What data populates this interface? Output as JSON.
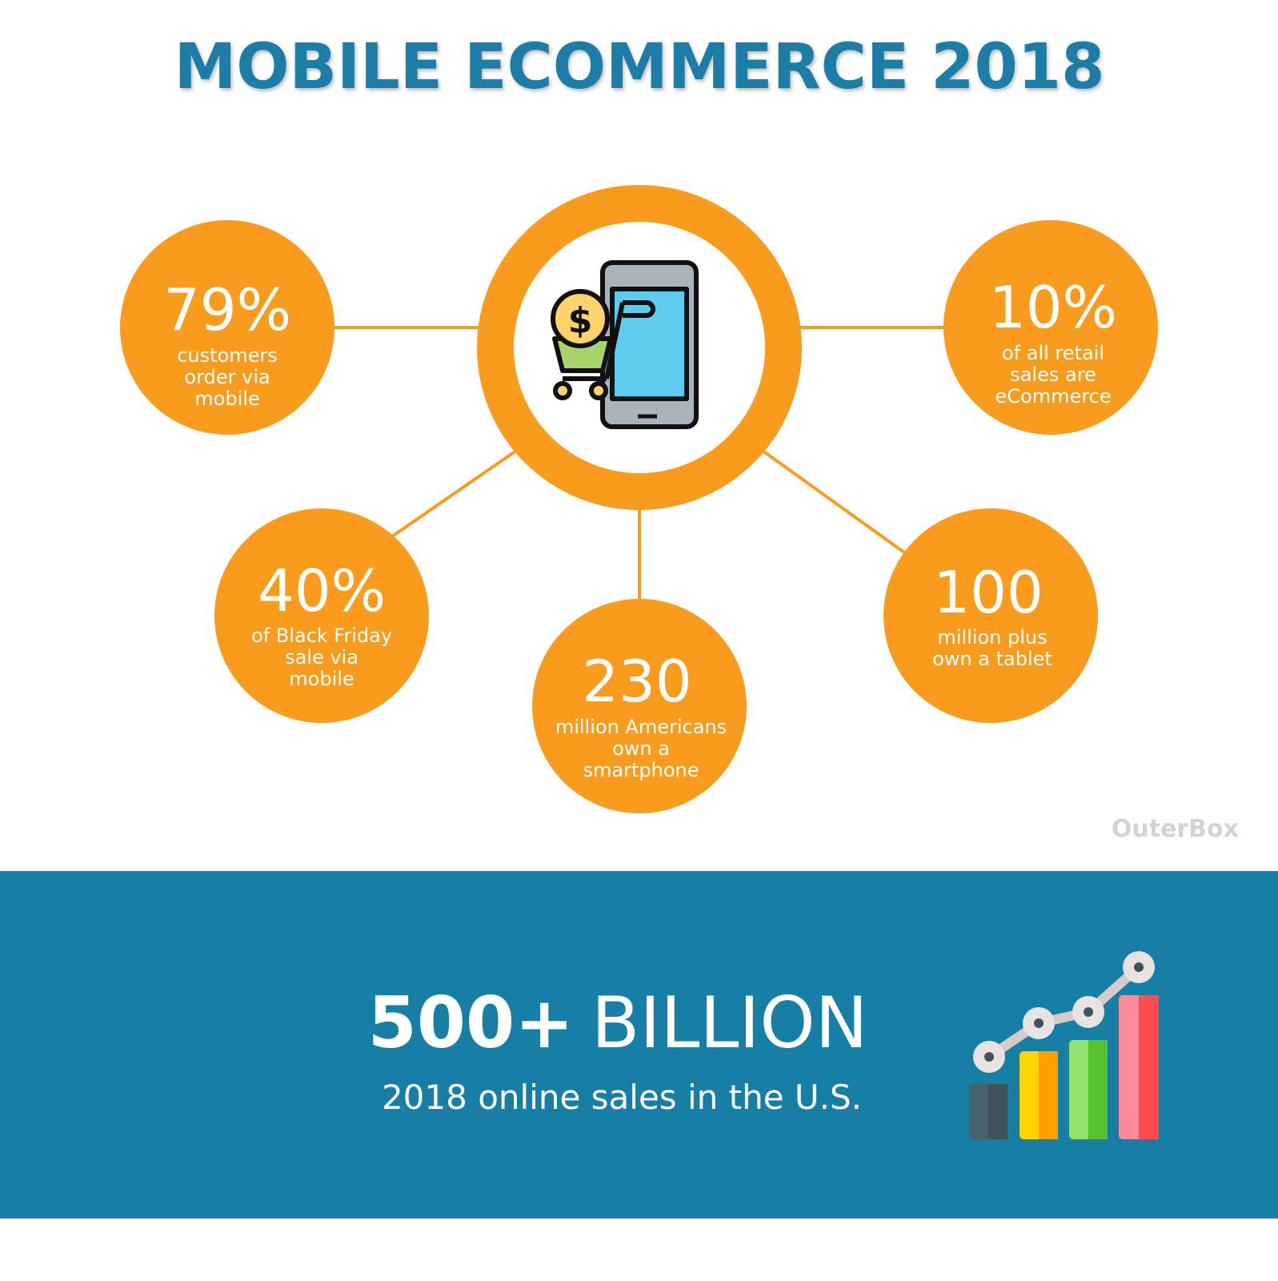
{
  "title": "MOBILE ECOMMERCE 2018",
  "colors": {
    "title": "#1a7ea6",
    "accent": "#f99b1c",
    "banner": "#177ea6"
  },
  "center_icon": "smartphone-shopping-cart-dollar-icon",
  "stats": [
    {
      "value": "79%",
      "lines": [
        "customers",
        "order via",
        "mobile"
      ]
    },
    {
      "value": "10%",
      "lines": [
        "of all retail",
        "sales are",
        "eCommerce"
      ]
    },
    {
      "value": "40%",
      "lines": [
        "of Black Friday",
        "sale via",
        "mobile"
      ]
    },
    {
      "value": "230",
      "lines": [
        "million Americans",
        "own a",
        "smartphone"
      ]
    },
    {
      "value": "100",
      "lines": [
        "million plus",
        "own a tablet"
      ]
    }
  ],
  "brand": "OuterBox",
  "banner": {
    "headline_bold": "500+",
    "headline_rest": "BILLION",
    "subtitle": "2018 online sales in the U.S.",
    "icon": "growth-bar-chart-icon"
  }
}
